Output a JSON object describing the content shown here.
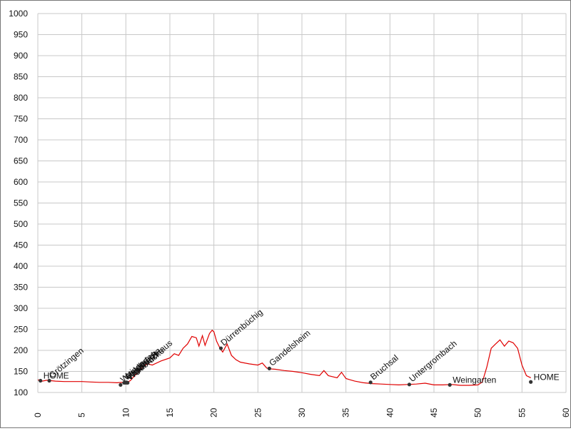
{
  "chart_data": {
    "type": "line",
    "title": "",
    "xlabel": "",
    "ylabel": "",
    "xlim": [
      0,
      60
    ],
    "ylim": [
      100,
      1000
    ],
    "x_ticks": [
      "0",
      "5",
      "10",
      "15",
      "20",
      "25",
      "30",
      "35",
      "40",
      "45",
      "50",
      "55",
      "60"
    ],
    "y_ticks": [
      "100",
      "150",
      "200",
      "250",
      "300",
      "350",
      "400",
      "450",
      "500",
      "550",
      "600",
      "650",
      "700",
      "750",
      "800",
      "850",
      "900",
      "950",
      "1000"
    ],
    "grid": true,
    "line_color": "#e00000",
    "marker_color": "#333333",
    "series": [
      {
        "x": [
          0,
          0.5,
          1,
          2,
          3,
          4,
          5,
          6,
          7,
          8,
          9,
          9.5,
          10,
          10.5,
          11,
          11.5,
          12,
          12.5,
          13,
          14,
          15,
          15.5,
          16,
          16.5,
          17,
          17.5,
          18,
          18.3,
          18.7,
          19,
          19.5,
          19.8,
          20,
          20.3,
          20.7,
          21,
          21.5,
          22,
          22.5,
          23,
          24,
          25,
          25.5,
          26,
          26.5,
          27,
          28,
          29,
          30,
          31,
          32,
          32.5,
          33,
          34,
          34.5,
          35,
          35.5,
          36,
          37,
          38,
          39,
          40,
          41,
          42,
          43,
          44,
          45,
          46,
          47,
          48,
          49,
          50,
          50.5,
          51,
          51.5,
          52,
          52.5,
          53,
          53.5,
          54,
          54.5,
          55,
          55.5,
          56
        ],
        "y": [
          130,
          127,
          129,
          127,
          126,
          126,
          126,
          125,
          124,
          124,
          123,
          124,
          123,
          128,
          140,
          150,
          163,
          168,
          165,
          175,
          182,
          192,
          188,
          205,
          215,
          233,
          230,
          210,
          235,
          212,
          240,
          248,
          244,
          222,
          205,
          196,
          215,
          188,
          178,
          172,
          168,
          165,
          170,
          158,
          156,
          155,
          152,
          150,
          147,
          143,
          140,
          152,
          140,
          135,
          148,
          133,
          130,
          127,
          123,
          121,
          120,
          119,
          118,
          119,
          120,
          122,
          118,
          118,
          119,
          117,
          117,
          118,
          125,
          160,
          205,
          215,
          225,
          210,
          222,
          218,
          205,
          165,
          140,
          135
        ]
      }
    ],
    "points": [
      {
        "label": "HOME",
        "x": 0.3,
        "y": 128
      },
      {
        "label": "Grötzingen",
        "x": 1.3,
        "y": 128
      },
      {
        "label": "Weingarten",
        "x": 9.4,
        "y": 118
      },
      {
        "label": "Waldbrücke",
        "x": 9.8,
        "y": 123
      },
      {
        "label": "Waldbrücke",
        "x": 10.2,
        "y": 123
      },
      {
        "label": "Vogelherd",
        "x": 10.0,
        "y": 123
      },
      {
        "label": "Vierordts Haus",
        "x": 10.1,
        "y": 124
      },
      {
        "label": "Dürrenbüchig",
        "x": 20.8,
        "y": 205
      },
      {
        "label": "Gandelsheim",
        "x": 26.3,
        "y": 157
      },
      {
        "label": "Bruchsal",
        "x": 37.8,
        "y": 124
      },
      {
        "label": "Untergrombach",
        "x": 42.2,
        "y": 119
      },
      {
        "label": "Weingarten",
        "x": 46.8,
        "y": 118
      },
      {
        "label": "HOME",
        "x": 56.0,
        "y": 125
      }
    ]
  }
}
